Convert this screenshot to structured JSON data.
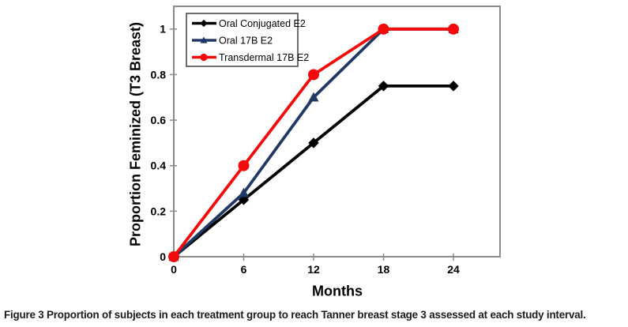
{
  "figure_caption": {
    "label": "Figure 3",
    "text": "Proportion of subjects in each treatment group to reach Tanner breast stage 3 assessed at each study interval."
  },
  "chart_data": {
    "type": "line",
    "title": "",
    "xlabel": "Months",
    "ylabel": "Proportion Feminized (T3 Breast)",
    "x": [
      0,
      6,
      12,
      18,
      24
    ],
    "xticks": [
      0,
      6,
      12,
      18,
      24
    ],
    "xtick_labels": [
      "0",
      "6",
      "12",
      "18",
      "24"
    ],
    "yticks": [
      0,
      0.2,
      0.4,
      0.6,
      0.8,
      1
    ],
    "ytick_labels": [
      "0",
      "0.2",
      "0.4",
      "0.6",
      "0.8",
      "1"
    ],
    "xlim": [
      0,
      28
    ],
    "ylim": [
      0,
      1.1
    ],
    "grid": false,
    "legend_position": "top-left-inside",
    "colors": {
      "axis": "#8a8a8a",
      "legend_border": "#3f3f3f",
      "background": "#ffffff"
    },
    "series": [
      {
        "name": "Oral Conjugated E2",
        "color": "#000000",
        "marker": "diamond",
        "values": [
          0,
          0.25,
          0.5,
          0.75,
          0.75
        ]
      },
      {
        "name": "Oral 17B E2",
        "color": "#1f3864",
        "marker": "triangle",
        "values": [
          0,
          0.28,
          0.7,
          1,
          1
        ]
      },
      {
        "name": "Transdermal 17B E2",
        "color": "#f40a0a",
        "marker": "circle",
        "values": [
          0,
          0.4,
          0.8,
          1,
          1
        ]
      }
    ]
  }
}
